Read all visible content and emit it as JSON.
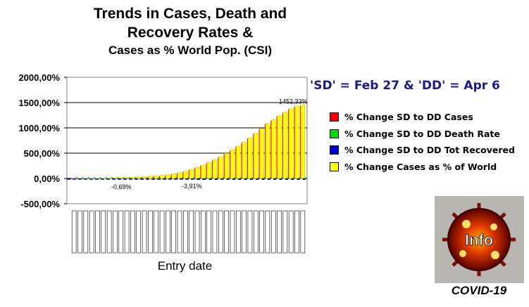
{
  "chart_data": {
    "type": "bar",
    "title_line1": "Trends in Cases, Death and",
    "title_line2": "Recovery Rates &",
    "subtitle": "Cases as % World Pop. (CSI)",
    "xlabel": "Entry date",
    "ylabel": "",
    "ylim": [
      -500,
      2000
    ],
    "y_ticks": [
      "2000,00%",
      "1500,00%",
      "1000,00%",
      "500,00%",
      "0,00%",
      "-500,00%"
    ],
    "y_tick_values": [
      2000,
      1500,
      1000,
      500,
      0,
      -500
    ],
    "grid": true,
    "legend_position": "right",
    "num_categories": 40,
    "series": [
      {
        "name": "% Change SD to DD Cases",
        "color": "#ff0000",
        "values": [
          0,
          0,
          0,
          0,
          0,
          0,
          0,
          0,
          0,
          0,
          0,
          0,
          0,
          0,
          0,
          0,
          0,
          0,
          0,
          0,
          0,
          0,
          0,
          0,
          0,
          0,
          0,
          0,
          0,
          0,
          0,
          0,
          0,
          0,
          0,
          0,
          0,
          0,
          0,
          0
        ]
      },
      {
        "name": "% Change SD to DD Death Rate",
        "color": "#00dd00",
        "values": [
          0,
          0,
          0,
          0,
          0,
          0,
          0,
          0,
          0,
          0,
          0,
          0,
          0,
          0,
          0,
          0,
          0,
          0,
          0,
          0,
          0,
          0,
          0,
          0,
          0,
          0,
          0,
          0,
          0,
          0,
          0,
          0,
          0,
          0,
          0,
          0,
          0,
          0,
          0,
          0
        ]
      },
      {
        "name": "% Change SD to DD Tot Recovered",
        "color": "#0000cc",
        "values": [
          0,
          0,
          0,
          0,
          0,
          0,
          0,
          0,
          0,
          0,
          0,
          0,
          0,
          0,
          0,
          0,
          0,
          0,
          0,
          0,
          0,
          -3.9,
          -6,
          -10,
          -12,
          -15,
          -18,
          -20,
          -22,
          -24,
          -26,
          -28,
          -30,
          -32,
          -34,
          -36,
          -38,
          -40,
          -42,
          -44
        ]
      },
      {
        "name": "% Change Cases as % of World",
        "color": "#ffff00",
        "values": [
          0.5,
          1,
          2,
          3,
          5,
          7,
          10,
          13,
          16,
          20,
          25,
          30,
          36,
          43,
          52,
          62,
          75,
          92,
          115,
          145,
          180,
          220,
          265,
          315,
          370,
          430,
          495,
          565,
          640,
          720,
          805,
          895,
          990,
          1090,
          1160,
          1240,
          1310,
          1380,
          1430,
          1452
        ]
      }
    ],
    "annotations": [
      "-0,69%",
      "-3,91%",
      "1452,33%"
    ]
  },
  "note": "'SD' = Feb 27 & 'DD' = Apr 6",
  "logo": {
    "text": "Info",
    "caption": "COVID-19"
  }
}
